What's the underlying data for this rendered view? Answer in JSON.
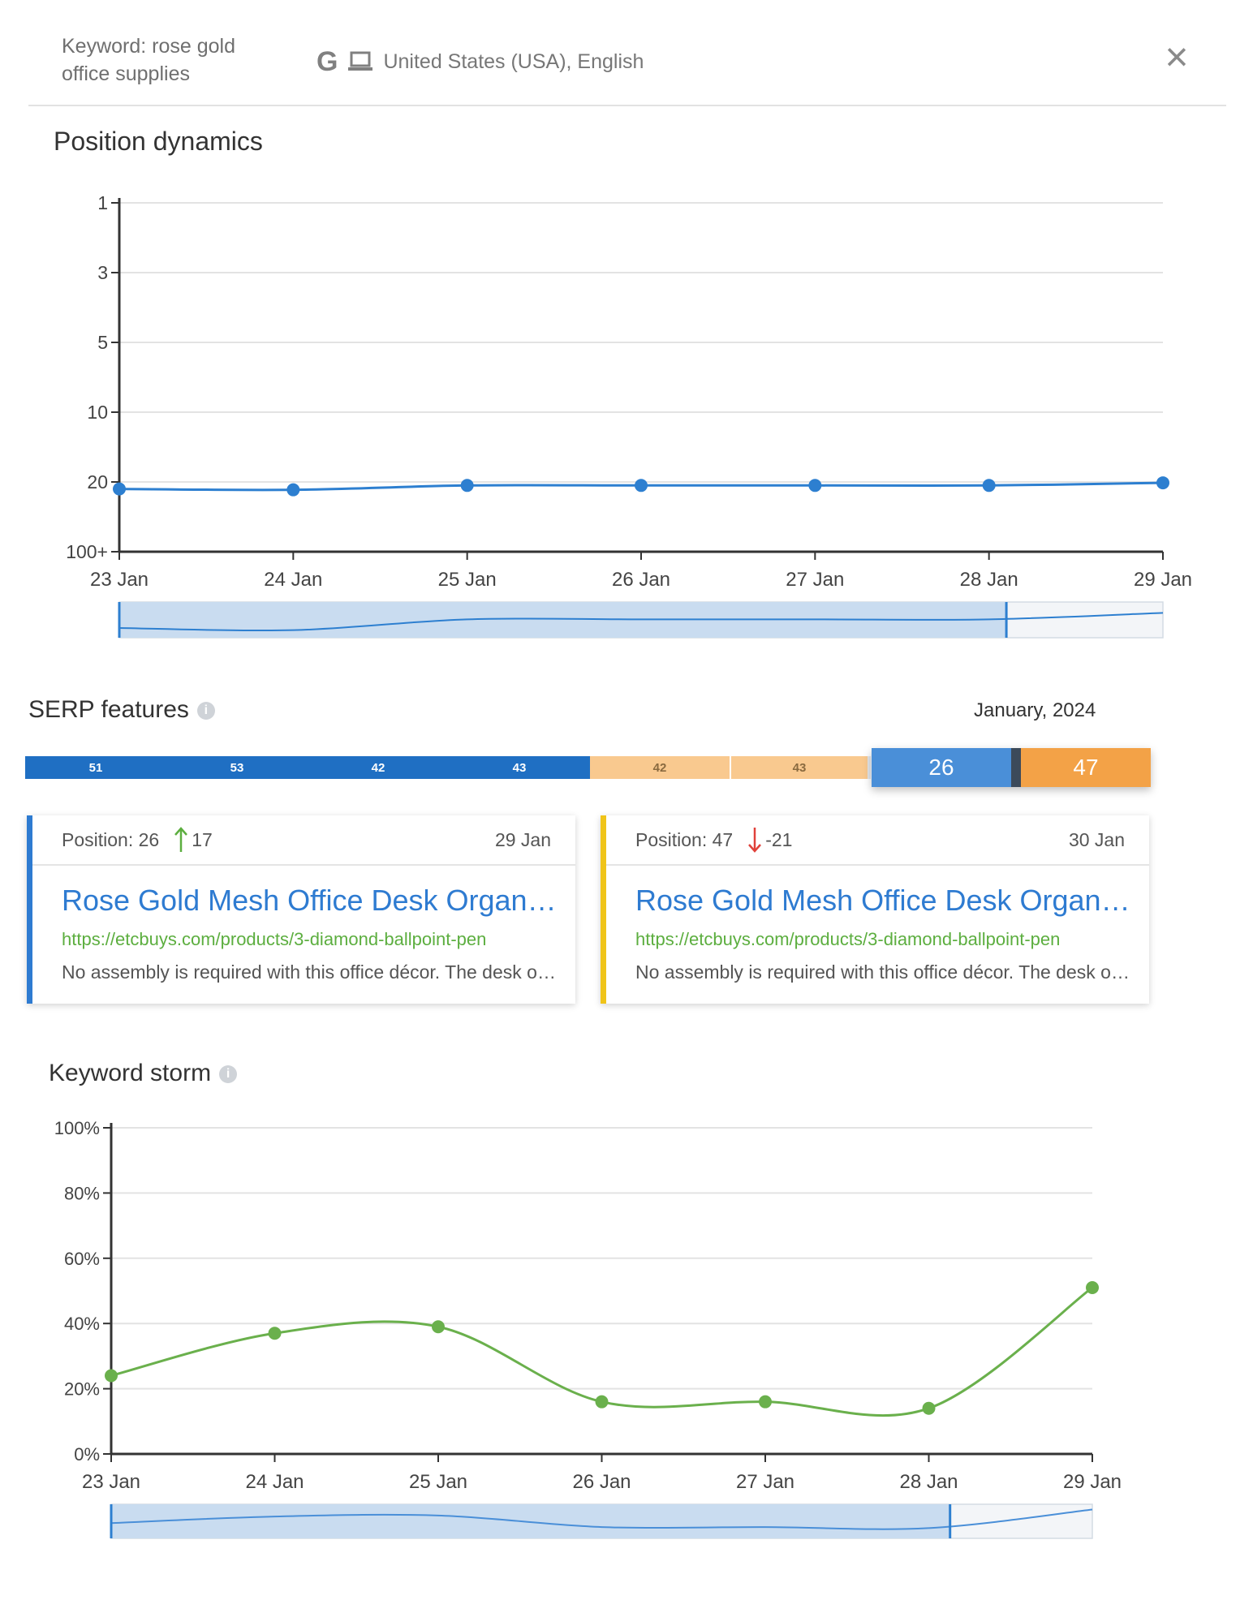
{
  "header": {
    "keyword_label": "Keyword: rose gold office supplies",
    "search_engine_icon": "google-g-icon",
    "device_icon": "laptop-icon",
    "region": "United States (USA), English",
    "close_icon": "close-icon"
  },
  "position_dynamics": {
    "title": "Position dynamics"
  },
  "serp": {
    "title": "SERP features",
    "month": "January, 2024",
    "segments_blue": [
      "51",
      "53",
      "42",
      "43"
    ],
    "segments_orange": [
      "42",
      "43"
    ],
    "selected": [
      "26",
      "47"
    ],
    "colors": {
      "blue": "#1f6fc3",
      "orange": "#f9c98f",
      "selected_blue": "#4a8fd8",
      "selected_orange": "#f3a247"
    }
  },
  "cards": [
    {
      "position": "Position: 26",
      "change": "17",
      "direction": "up",
      "date": "29 Jan",
      "title": "Rose Gold Mesh Office Desk Organizer",
      "url": "https://etcbuys.com/products/3-diamond-ballpoint-pen",
      "description": "No assembly is required with this office décor. The desk organizer",
      "accent": "#2e7bd1"
    },
    {
      "position": "Position: 47",
      "change": "-21",
      "direction": "down",
      "date": "30 Jan",
      "title": "Rose Gold Mesh Office Desk Organizer",
      "url": "https://etcbuys.com/products/3-diamond-ballpoint-pen",
      "description": "No assembly is required with this office décor. The desk organizer",
      "accent": "#f0c419"
    }
  ],
  "keyword_storm": {
    "title": "Keyword storm"
  },
  "chart_data": [
    {
      "type": "line",
      "title": "Position dynamics",
      "x": [
        "23 Jan",
        "24 Jan",
        "25 Jan",
        "26 Jan",
        "27 Jan",
        "28 Jan",
        "29 Jan"
      ],
      "y_tick_labels": [
        "1",
        "3",
        "5",
        "10",
        "20",
        "100+"
      ],
      "series": [
        {
          "values": [
            28,
            29,
            24,
            24,
            24,
            24,
            21
          ]
        }
      ],
      "y_inverted": true,
      "grid": true,
      "color": "#2d7fd0"
    },
    {
      "type": "line",
      "title": "Keyword storm",
      "x": [
        "23 Jan",
        "24 Jan",
        "25 Jan",
        "26 Jan",
        "27 Jan",
        "28 Jan",
        "29 Jan"
      ],
      "y_tick_labels": [
        "100%",
        "80%",
        "60%",
        "40%",
        "20%",
        "0%"
      ],
      "ylim": [
        0,
        100
      ],
      "series": [
        {
          "values": [
            24,
            37,
            39,
            16,
            16,
            14,
            51
          ]
        }
      ],
      "grid": true,
      "color": "#6ab04c"
    }
  ]
}
